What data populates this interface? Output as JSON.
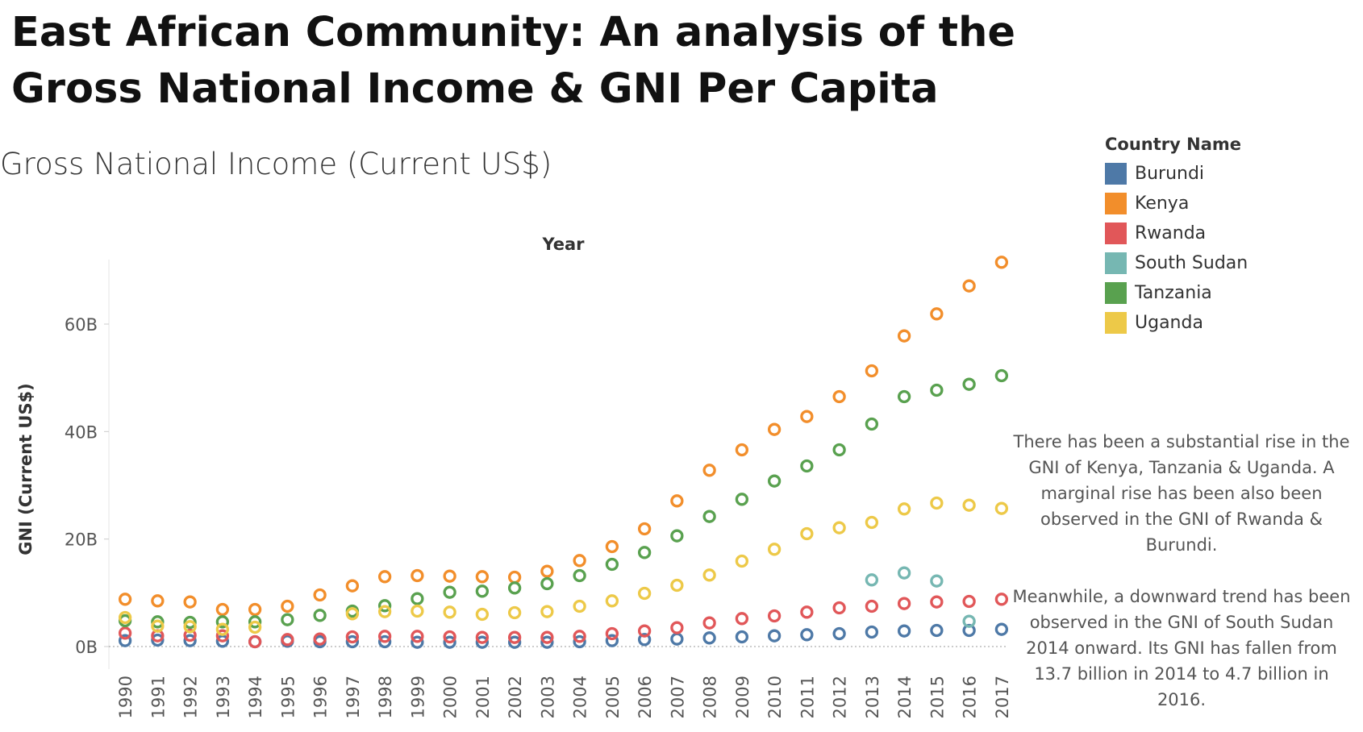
{
  "title": "East African Community: An analysis of the Gross National Income & GNI Per Capita",
  "chart_data": {
    "type": "scatter",
    "title": "Gross National Income (Current US$)",
    "xlabel": "Year",
    "ylabel": "GNI (Current US$)",
    "ylim": [
      0,
      72
    ],
    "yticks": [
      0,
      20,
      40,
      60
    ],
    "ytick_labels": [
      "0B",
      "20B",
      "40B",
      "60B"
    ],
    "x": [
      "1990",
      "1991",
      "1992",
      "1993",
      "1994",
      "1995",
      "1996",
      "1997",
      "1998",
      "1999",
      "2000",
      "2001",
      "2002",
      "2003",
      "2004",
      "2005",
      "2006",
      "2007",
      "2008",
      "2009",
      "2010",
      "2011",
      "2012",
      "2013",
      "2014",
      "2015",
      "2016",
      "2017"
    ],
    "grid": false,
    "legend_position": "right",
    "series": [
      {
        "name": "Burundi",
        "color": "#4e79a7",
        "values": [
          1.1,
          1.2,
          1.1,
          1.0,
          0.9,
          1.0,
          0.9,
          0.9,
          0.9,
          0.8,
          0.8,
          0.8,
          0.8,
          0.8,
          0.9,
          1.1,
          1.3,
          1.4,
          1.6,
          1.8,
          2.0,
          2.2,
          2.4,
          2.7,
          2.9,
          3.0,
          3.0,
          3.2
        ]
      },
      {
        "name": "Kenya",
        "color": "#f28e2b",
        "values": [
          8.8,
          8.5,
          8.3,
          6.9,
          6.9,
          7.5,
          9.6,
          11.3,
          13.0,
          13.2,
          13.1,
          13.0,
          12.9,
          14.0,
          16.0,
          18.6,
          21.9,
          27.1,
          32.8,
          36.6,
          40.4,
          42.8,
          46.5,
          51.3,
          57.8,
          61.9,
          67.1,
          71.5
        ]
      },
      {
        "name": "Rwanda",
        "color": "#e15759",
        "values": [
          2.5,
          2.0,
          2.1,
          2.0,
          0.9,
          1.3,
          1.4,
          1.8,
          1.9,
          1.9,
          1.8,
          1.7,
          1.7,
          1.7,
          1.9,
          2.4,
          2.9,
          3.5,
          4.4,
          5.2,
          5.7,
          6.4,
          7.2,
          7.5,
          8.0,
          8.3,
          8.4,
          8.8
        ]
      },
      {
        "name": "South Sudan",
        "color": "#76b7b2",
        "values": [
          null,
          null,
          null,
          null,
          null,
          null,
          null,
          null,
          null,
          null,
          null,
          null,
          null,
          null,
          null,
          null,
          null,
          null,
          null,
          null,
          null,
          null,
          null,
          12.4,
          13.7,
          12.2,
          4.7,
          null
        ]
      },
      {
        "name": "Tanzania",
        "color": "#59a14f",
        "values": [
          4.8,
          4.6,
          4.5,
          4.6,
          4.6,
          5.0,
          5.8,
          6.6,
          7.6,
          8.9,
          10.1,
          10.3,
          10.9,
          11.7,
          13.2,
          15.3,
          17.5,
          20.6,
          24.2,
          27.4,
          30.8,
          33.6,
          36.6,
          41.4,
          46.5,
          47.7,
          48.8,
          50.4
        ]
      },
      {
        "name": "Uganda",
        "color": "#edc948",
        "values": [
          5.4,
          3.8,
          3.7,
          3.2,
          3.6,
          null,
          null,
          6.1,
          6.5,
          6.6,
          6.4,
          6.0,
          6.3,
          6.5,
          7.5,
          8.5,
          9.9,
          11.4,
          13.3,
          15.9,
          18.1,
          21.0,
          22.1,
          23.1,
          25.6,
          26.7,
          26.3,
          25.7
        ]
      }
    ]
  },
  "annotation": {
    "paragraph1": "There has been a substantial rise in the GNI of Kenya, Tanzania & Uganda. A marginal rise has been also been observed in the GNI of Rwanda & Burundi.",
    "paragraph2": "Meanwhile, a downward trend has been observed in the GNI of South Sudan 2014 onward. Its GNI has fallen from 13.7 billion in 2014 to 4.7 billion in 2016."
  }
}
